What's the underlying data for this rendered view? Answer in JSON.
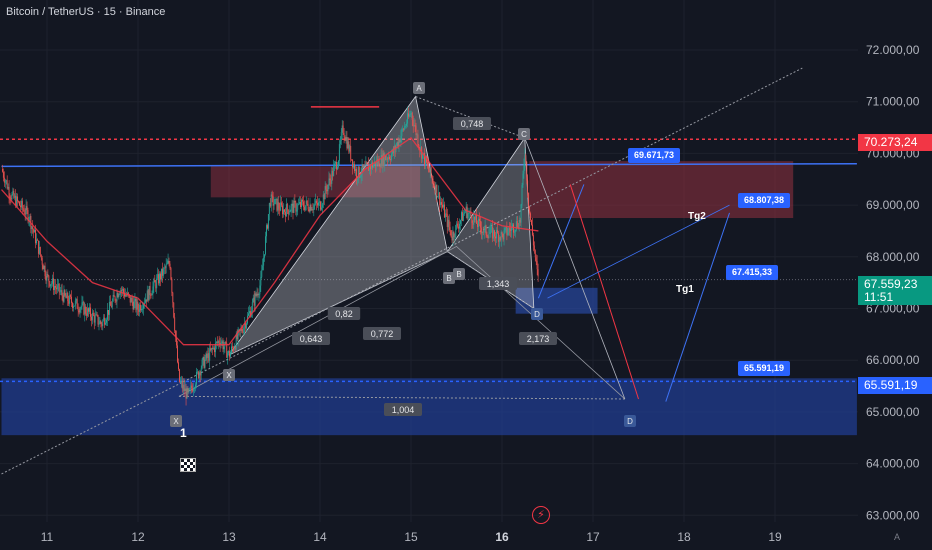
{
  "header": {
    "title": "Bitcoin / TetherUS · 15 · Binance"
  },
  "chart_data": {
    "type": "candlestick",
    "symbol": "Bitcoin / TetherUS",
    "exchange": "Binance",
    "timeframe": "15",
    "x_ticks": [
      "11",
      "12",
      "13",
      "14",
      "15",
      "16",
      "17",
      "18",
      "19"
    ],
    "x_tick_positions": [
      11,
      12,
      13,
      14,
      15,
      16,
      17,
      18,
      19
    ],
    "y_ticks": [
      63000,
      64000,
      65000,
      66000,
      67000,
      68000,
      69000,
      70000,
      71000,
      72000
    ],
    "y_tick_labels": [
      "63.000,00",
      "64.000,00",
      "65.000,00",
      "66.000,00",
      "67.000,00",
      "68.000,00",
      "69.000,00",
      "70.000,00",
      "71.000,00",
      "72.000,00"
    ],
    "ylim": [
      62900,
      72700
    ],
    "xlim": [
      10.5,
      19.6
    ],
    "price_path": [
      [
        10.5,
        69700
      ],
      [
        10.6,
        69200
      ],
      [
        10.8,
        68800
      ],
      [
        11.0,
        67600
      ],
      [
        11.2,
        67200
      ],
      [
        11.4,
        67000
      ],
      [
        11.6,
        66700
      ],
      [
        11.8,
        67400
      ],
      [
        12.0,
        67000
      ],
      [
        12.2,
        67500
      ],
      [
        12.35,
        67900
      ],
      [
        12.45,
        65600
      ],
      [
        12.55,
        65300
      ],
      [
        12.7,
        65900
      ],
      [
        12.9,
        66400
      ],
      [
        13.0,
        66100
      ],
      [
        13.2,
        66800
      ],
      [
        13.35,
        67500
      ],
      [
        13.45,
        69100
      ],
      [
        13.6,
        68900
      ],
      [
        13.8,
        69000
      ],
      [
        14.0,
        69000
      ],
      [
        14.2,
        69900
      ],
      [
        14.25,
        70500
      ],
      [
        14.4,
        69600
      ],
      [
        14.6,
        69800
      ],
      [
        14.8,
        70000
      ],
      [
        15.0,
        70800
      ],
      [
        15.1,
        70100
      ],
      [
        15.3,
        69200
      ],
      [
        15.45,
        68400
      ],
      [
        15.6,
        68900
      ],
      [
        15.8,
        68500
      ],
      [
        16.0,
        68400
      ],
      [
        16.2,
        68700
      ],
      [
        16.25,
        70100
      ],
      [
        16.3,
        68900
      ],
      [
        16.4,
        67500
      ]
    ],
    "moving_average": [
      [
        10.5,
        69300
      ],
      [
        11.0,
        68300
      ],
      [
        11.5,
        67500
      ],
      [
        12.0,
        67200
      ],
      [
        12.5,
        66300
      ],
      [
        13.0,
        66300
      ],
      [
        13.5,
        67500
      ],
      [
        14.0,
        68800
      ],
      [
        14.5,
        69700
      ],
      [
        15.0,
        70300
      ],
      [
        15.3,
        69600
      ],
      [
        15.6,
        68900
      ],
      [
        16.0,
        68600
      ],
      [
        16.4,
        68500
      ]
    ],
    "last_price": 67559.23,
    "last_price_label": "67.559,23",
    "countdown": "11:51",
    "resistance_level_label": "70.273,24",
    "resistance_level": 70273.24,
    "support_level_label": "65.591,19",
    "support_level": 65591.19,
    "harmonic_pattern": {
      "points": [
        {
          "label": "X",
          "x": 13.0,
          "y": 66100
        },
        {
          "label": "A",
          "x": 15.05,
          "y": 71100
        },
        {
          "label": "B",
          "x": 15.4,
          "y": 68100
        },
        {
          "label": "C",
          "x": 16.25,
          "y": 70300
        },
        {
          "label": "D",
          "x": 16.35,
          "y": 67000
        }
      ],
      "second_pattern": [
        {
          "label": "X",
          "x": 12.45,
          "y": 65300
        },
        {
          "label": "B",
          "x": 15.5,
          "y": 68200
        },
        {
          "label": "D",
          "x": 17.35,
          "y": 65250
        }
      ],
      "ratios": [
        {
          "text": "0,748",
          "x": 15.55,
          "y": 70600
        },
        {
          "text": "0,82",
          "x": 14.25,
          "y": 67000
        },
        {
          "text": "0,643",
          "x": 13.9,
          "y": 66500
        },
        {
          "text": "0,772",
          "x": 14.7,
          "y": 66600
        },
        {
          "text": "1,343",
          "x": 15.9,
          "y": 67550
        },
        {
          "text": "2,173",
          "x": 16.45,
          "y": 66500
        },
        {
          "text": "1,004",
          "x": 15.1,
          "y": 65000
        }
      ]
    },
    "zones": [
      {
        "name": "upper-resistance-zone",
        "x0": 12.8,
        "x1": 15.1,
        "y0": 69150,
        "y1": 69750
      },
      {
        "name": "right-resistance-zone",
        "x0": 16.3,
        "x1": 19.2,
        "y0": 68750,
        "y1": 69850
      },
      {
        "name": "d-target-box",
        "x0": 16.15,
        "x1": 17.05,
        "y0": 66900,
        "y1": 67400
      },
      {
        "name": "support-zone",
        "x0": 10.5,
        "x1": 19.9,
        "y0": 64550,
        "y1": 65650
      }
    ],
    "trendlines": [
      {
        "name": "blue-trendline",
        "from": [
          10.5,
          69750
        ],
        "to": [
          19.9,
          69800
        ]
      },
      {
        "name": "dotted-channel",
        "from": [
          10.5,
          63800
        ],
        "to": [
          19.3,
          71650
        ]
      },
      {
        "name": "red-short-line",
        "from": [
          13.9,
          70900
        ],
        "to": [
          14.65,
          70900
        ]
      }
    ],
    "annotations": [
      {
        "text": "69.671,73",
        "x": 16.6,
        "y": 70000
      },
      {
        "text": "68.807,38",
        "x": 18.9,
        "y": 69100
      },
      {
        "text": "67.415,33",
        "x": 18.5,
        "y": 67650
      },
      {
        "text": "65.591,19",
        "x": 18.5,
        "y": 65850
      },
      {
        "text": "Tg2",
        "x": 18.15,
        "y": 68800
      },
      {
        "text": "Tg1",
        "x": 17.95,
        "y": 67400
      },
      {
        "text": "1",
        "x": 12.5,
        "y": 64700
      }
    ],
    "projection": [
      [
        16.4,
        67200
      ],
      [
        16.9,
        69400
      ],
      [
        17.5,
        65200
      ],
      [
        17.8,
        65200
      ],
      [
        18.5,
        68850
      ]
    ],
    "grid": true
  },
  "colors": {
    "background": "#131722",
    "up": "#26a69a",
    "down": "#ef5350",
    "ma": "#f23645",
    "blue": "#2962ff",
    "trend_blue": "#3d72f5",
    "resistance": "#f23645",
    "support": "#2962ff",
    "last_price": "#089981"
  }
}
